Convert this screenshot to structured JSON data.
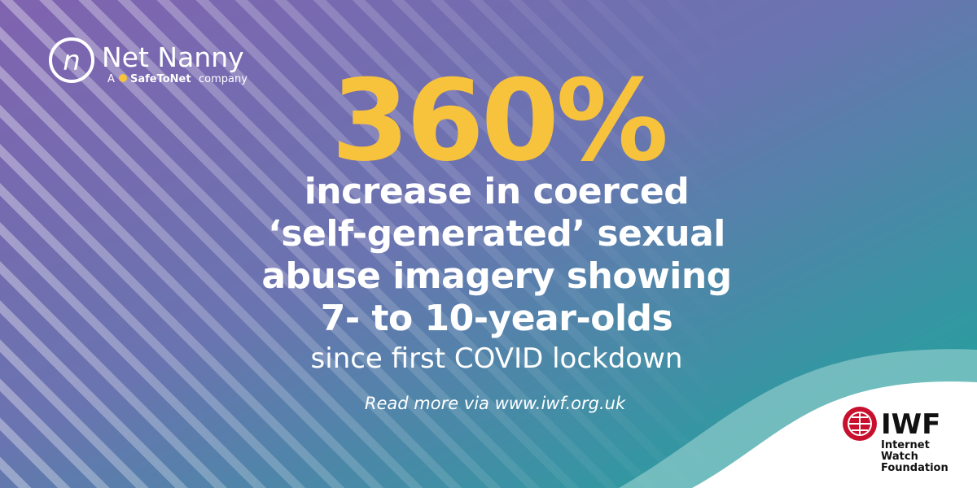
{
  "brand": {
    "name": "Net Nanny",
    "tagline_prefix": "A",
    "parent": "SafeToNet",
    "tagline_suffix": "company"
  },
  "stat": "360%",
  "headline": [
    "increase in coerced",
    "‘self-generated’ sexual",
    "abuse imagery showing",
    "7- to 10-year-olds"
  ],
  "subline": "since first COVID lockdown",
  "link": "Read more via www.iwf.org.uk",
  "partner": {
    "acronym": "IWF",
    "lines": [
      "Internet",
      "Watch",
      "Foundation"
    ]
  }
}
